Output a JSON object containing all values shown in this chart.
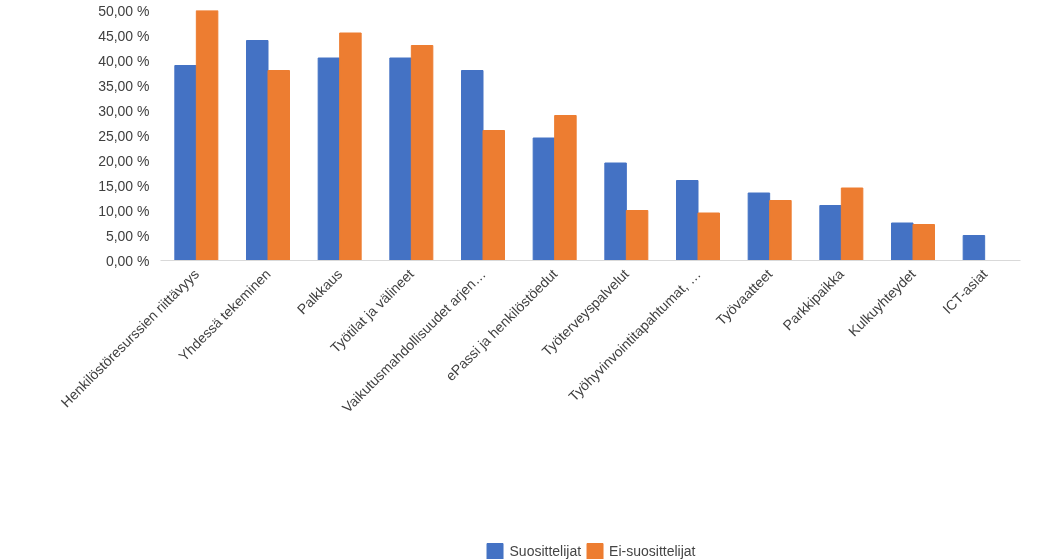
{
  "chart_data": {
    "type": "bar",
    "categories": [
      "Henkilöstöresurssien riittävyys",
      "Yhdessä tekeminen",
      "Palkkaus",
      "Työtilat ja välineet",
      "Vaikutusmahdollisuudet arjen…",
      "ePassi ja henkilöstöedut",
      "Työterveyspalvelut",
      "Työhyvinvointitapahtumat, …",
      "Työvaatteet",
      "Parkkipaikka",
      "Kulkuyhteydet",
      "ICT-asiat"
    ],
    "series": [
      {
        "name": "Suosittelijat",
        "color": "#4472c4",
        "values": [
          39,
          44,
          40.5,
          40.5,
          38,
          24.5,
          19.5,
          16,
          13.5,
          11,
          7.5,
          5
        ]
      },
      {
        "name": "Ei-suosittelijat",
        "color": "#ed7d31",
        "values": [
          50,
          38,
          45.5,
          43,
          26,
          29,
          10,
          9.5,
          12,
          14.5,
          7.2,
          0
        ]
      }
    ],
    "ylim": [
      0,
      50
    ],
    "yticks": [
      {
        "value": 0,
        "label": "0,00 %"
      },
      {
        "value": 5,
        "label": "5,00 %"
      },
      {
        "value": 10,
        "label": "10,00 %"
      },
      {
        "value": 15,
        "label": "15,00 %"
      },
      {
        "value": 20,
        "label": "20,00 %"
      },
      {
        "value": 25,
        "label": "25,00 %"
      },
      {
        "value": 30,
        "label": "30,00 %"
      },
      {
        "value": 35,
        "label": "35,00 %"
      },
      {
        "value": 40,
        "label": "40,00 %"
      },
      {
        "value": 45,
        "label": "45,00 %"
      },
      {
        "value": 50,
        "label": "50,00 %"
      }
    ],
    "grid": false,
    "legend": "bottom"
  }
}
